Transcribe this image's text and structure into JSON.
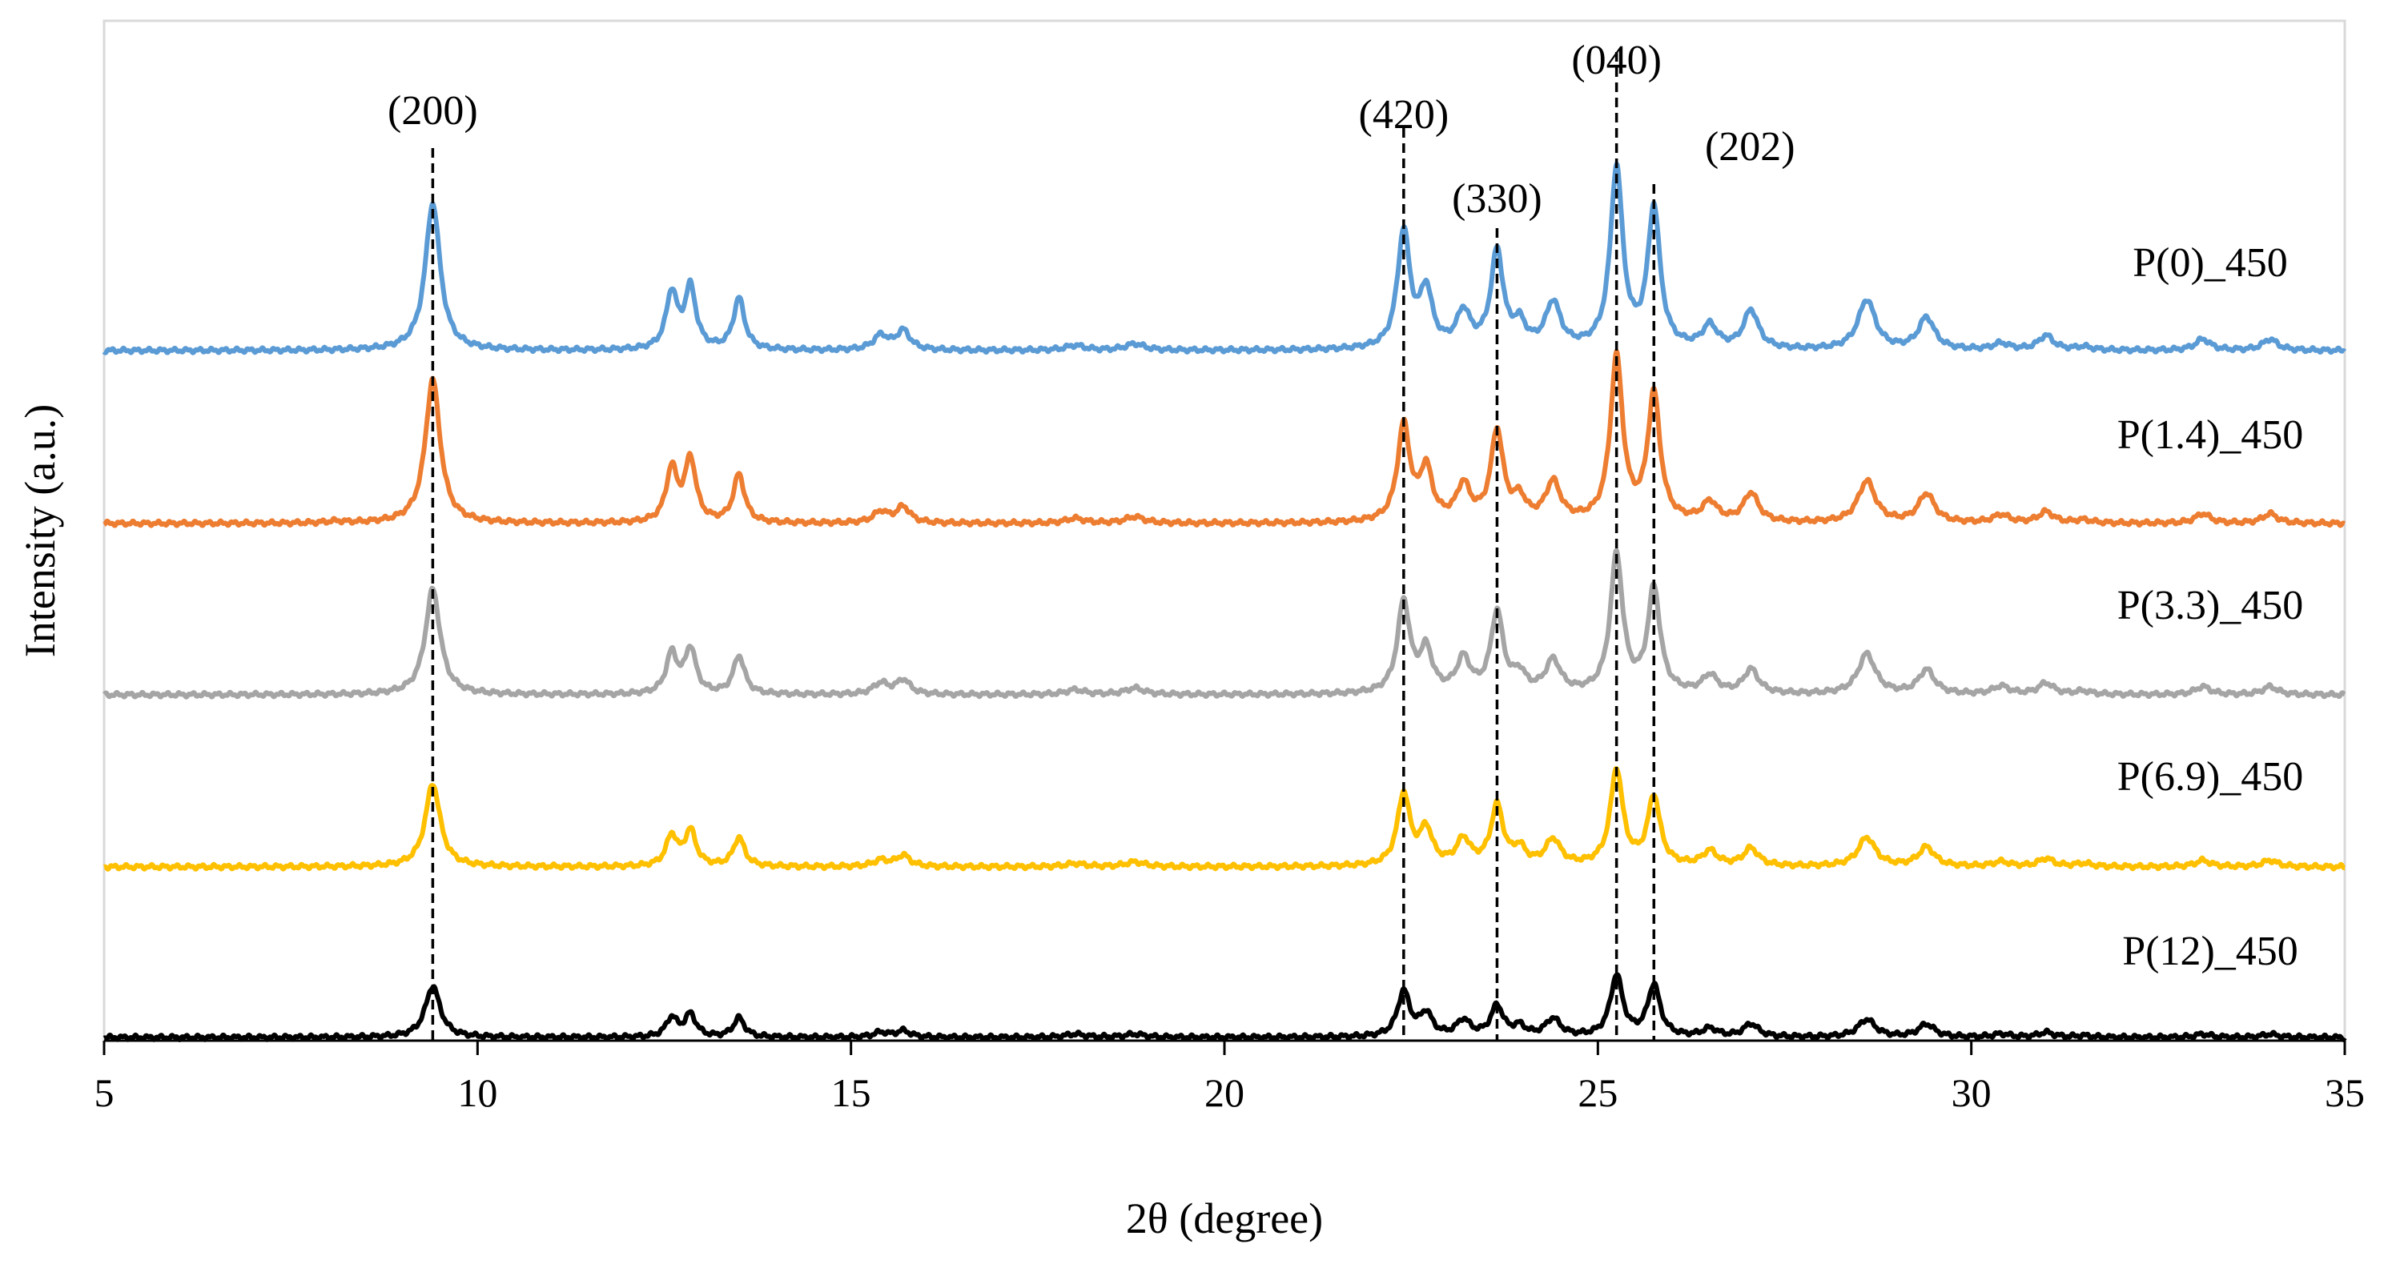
{
  "chart_data": {
    "type": "line",
    "title": "",
    "xlabel": "2θ (degree)",
    "ylabel": "Intensity (a.u.)",
    "xlim": [
      5,
      35
    ],
    "xticks": [
      5,
      10,
      15,
      20,
      25,
      30,
      35
    ],
    "xtick_labels": [
      "5",
      "10",
      "15",
      "20",
      "25",
      "30",
      "35"
    ],
    "grid": false,
    "y_units": "arbitrary, vertically offset traces",
    "peaks": [
      {
        "x": 8.1,
        "w": 0.15
      },
      {
        "x": 9.4,
        "w": 0.12
      },
      {
        "x": 12.6,
        "w": 0.09
      },
      {
        "x": 12.85,
        "w": 0.09
      },
      {
        "x": 13.5,
        "w": 0.09
      },
      {
        "x": 15.4,
        "w": 0.12
      },
      {
        "x": 15.7,
        "w": 0.11
      },
      {
        "x": 18.0,
        "w": 0.15
      },
      {
        "x": 18.8,
        "w": 0.15
      },
      {
        "x": 22.4,
        "w": 0.1
      },
      {
        "x": 22.7,
        "w": 0.1
      },
      {
        "x": 23.2,
        "w": 0.11
      },
      {
        "x": 23.65,
        "w": 0.1
      },
      {
        "x": 23.95,
        "w": 0.1
      },
      {
        "x": 24.4,
        "w": 0.12
      },
      {
        "x": 25.25,
        "w": 0.1
      },
      {
        "x": 25.75,
        "w": 0.1
      },
      {
        "x": 26.5,
        "w": 0.12
      },
      {
        "x": 27.05,
        "w": 0.12
      },
      {
        "x": 28.6,
        "w": 0.14
      },
      {
        "x": 29.4,
        "w": 0.13
      },
      {
        "x": 30.4,
        "w": 0.13
      },
      {
        "x": 31.0,
        "w": 0.12
      },
      {
        "x": 31.5,
        "w": 0.13
      },
      {
        "x": 33.1,
        "w": 0.12
      },
      {
        "x": 34.0,
        "w": 0.12
      }
    ],
    "series": [
      {
        "name": "P(0)_450",
        "color": "#5B9BD5",
        "baseline": 4,
        "heights": [
          0,
          92,
          35,
          38,
          32,
          9,
          12,
          3,
          4,
          73,
          35,
          22,
          60,
          14,
          28,
          112,
          87,
          14,
          24,
          31,
          20,
          4,
          9,
          2,
          7,
          7
        ]
      },
      {
        "name": "P(1.4)_450",
        "color": "#ED7D31",
        "baseline": 3,
        "heights": [
          1,
          90,
          33,
          39,
          30,
          7,
          10,
          3,
          4,
          60,
          32,
          22,
          56,
          13,
          24,
          102,
          79,
          12,
          18,
          26,
          18,
          5,
          7,
          2,
          6,
          6
        ]
      },
      {
        "name": "P(3.3)_450",
        "color": "#A5A5A5",
        "baseline": 2.5,
        "heights": [
          0,
          66,
          25,
          28,
          24,
          7,
          9,
          3,
          4,
          57,
          26,
          21,
          50,
          11,
          20,
          86,
          65,
          11,
          15,
          25,
          15,
          5,
          7,
          2,
          5,
          5
        ]
      },
      {
        "name": "P(6.9)_450",
        "color": "#FFC000",
        "baseline": 2,
        "heights": [
          0,
          52,
          19,
          22,
          18,
          4,
          7,
          2,
          3,
          45,
          22,
          16,
          37,
          10,
          16,
          60,
          43,
          9,
          11,
          18,
          12,
          3,
          5,
          2,
          4,
          4
        ]
      },
      {
        "name": "P(12)_450",
        "color": "#000000",
        "baseline": 1,
        "heights": [
          0,
          32,
          12,
          14,
          12,
          3,
          4,
          2,
          2,
          28,
          14,
          10,
          19,
          6,
          11,
          38,
          32,
          5,
          8,
          11,
          8,
          2,
          3,
          1,
          2,
          2
        ]
      }
    ],
    "annotations": [
      {
        "label": "(200)",
        "x": 9.4
      },
      {
        "label": "(420)",
        "x": 22.4
      },
      {
        "label": "(330)",
        "x": 23.65
      },
      {
        "label": "(040)",
        "x": 25.25
      },
      {
        "label": "(202)",
        "x": 25.75
      }
    ]
  }
}
